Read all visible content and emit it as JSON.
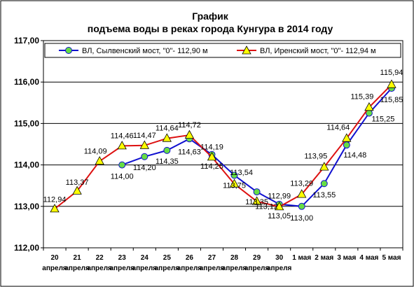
{
  "chart_data": {
    "type": "line",
    "title_line1": "График",
    "title_line2": "подъема воды в реках города Кунгура в 2014 году",
    "x_tick_top": [
      "20",
      "21",
      "22",
      "23",
      "24",
      "25",
      "26",
      "27",
      "28",
      "29",
      "30",
      "1 мая",
      "2 мая",
      "3 мая",
      "4 мая",
      "5 мая"
    ],
    "x_tick_bottom": [
      "апреля",
      "апреля",
      "апреля",
      "апреля",
      "апреля",
      "апреля",
      "апреля",
      "апреля",
      "апреля",
      "апреля",
      "апреля",
      "",
      "",
      "",
      "",
      ""
    ],
    "y_ticks": [
      "112,00",
      "113,00",
      "114,00",
      "115,00",
      "116,00",
      "117,00"
    ],
    "ylim": [
      112,
      117
    ],
    "grid": true,
    "legend_position": "top",
    "series": [
      {
        "name": "ВЛ, Сылвенский мост, \"0\"- 112,90 м",
        "color": "#1010d0",
        "marker": "circle",
        "marker_color": "#66dd44",
        "values": [
          null,
          null,
          null,
          114.0,
          114.2,
          114.35,
          114.63,
          114.25,
          113.75,
          113.35,
          113.05,
          113.0,
          113.55,
          114.48,
          115.25,
          115.85
        ],
        "labels": [
          "",
          "",
          "",
          "114,00",
          "114,20",
          "114,35",
          "114,63",
          "114,25",
          "113,75",
          "113,35",
          "113,05",
          "113,00",
          "113,55",
          "114,48",
          "115,25",
          "115,85"
        ]
      },
      {
        "name": "ВЛ, Иренский мост, \"0\"- 112,94 м",
        "color": "#dd1111",
        "marker": "triangle",
        "marker_color": "#ffff00",
        "values": [
          112.94,
          113.37,
          114.09,
          114.46,
          114.47,
          114.64,
          114.72,
          114.19,
          113.54,
          113.12,
          112.99,
          113.29,
          113.95,
          114.64,
          115.39,
          115.94
        ],
        "labels": [
          "112,94",
          "113,37",
          "114,09",
          "114,46",
          "114,47",
          "114,64",
          "114,72",
          "114,19",
          "113,54",
          "113,12",
          "112,99",
          "113,29",
          "113,95",
          "114,64",
          "115,39",
          "115,94"
        ]
      }
    ]
  }
}
